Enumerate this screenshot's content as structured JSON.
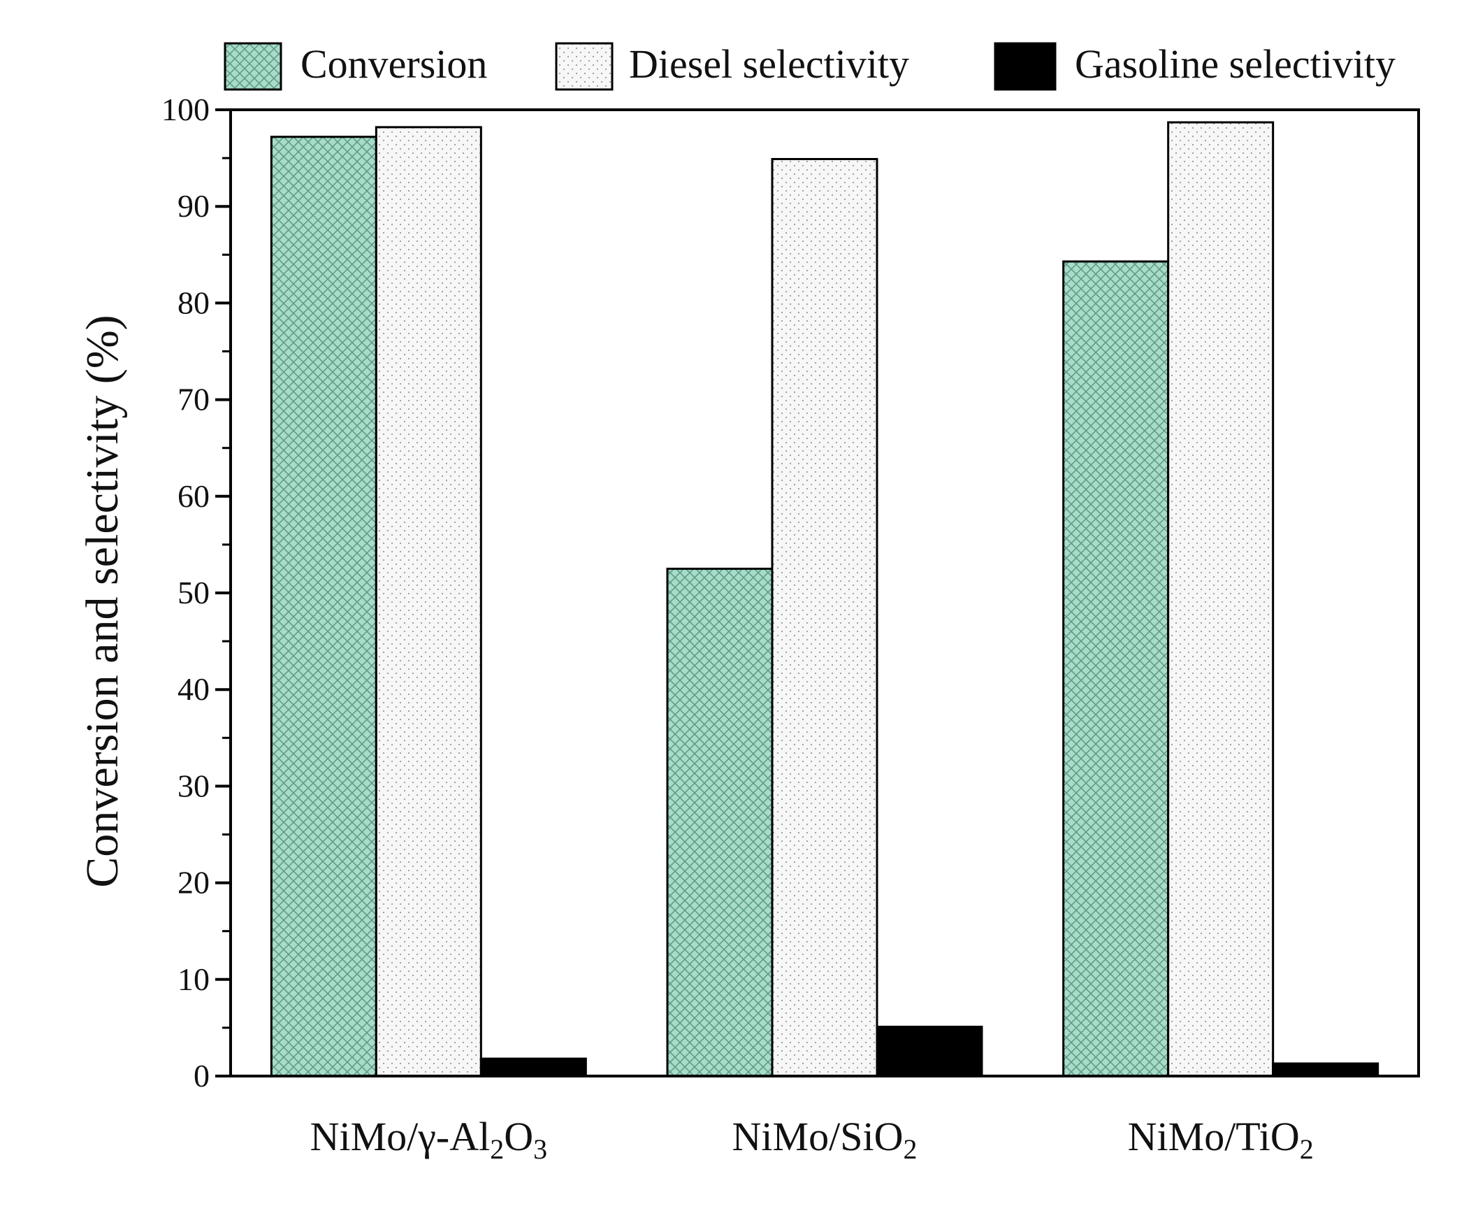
{
  "chart_data": {
    "type": "bar",
    "title": "",
    "xlabel": "",
    "ylabel": "Conversion and selectivity (%)",
    "ylim": [
      0,
      100
    ],
    "yticks": [
      0,
      10,
      20,
      30,
      40,
      50,
      60,
      70,
      80,
      90,
      100
    ],
    "categories": [
      {
        "base": "NiMo/γ-Al",
        "sub1": "2",
        "mid": "O",
        "sub2": "3"
      },
      {
        "base": "NiMo/SiO",
        "sub1": "2",
        "mid": "",
        "sub2": ""
      },
      {
        "base": "NiMo/TiO",
        "sub1": "2",
        "mid": "",
        "sub2": ""
      }
    ],
    "series": [
      {
        "name": "Conversion",
        "values": [
          97.2,
          52.5,
          84.3
        ],
        "color": "#9fd4c1",
        "pattern": "crosshatch"
      },
      {
        "name": "Diesel selectivity",
        "values": [
          98.2,
          94.9,
          98.7
        ],
        "color": "#f3f3f3",
        "pattern": "dots"
      },
      {
        "name": "Gasoline selectivity",
        "values": [
          1.8,
          5.1,
          1.3
        ],
        "color": "#000000",
        "pattern": "solid"
      }
    ],
    "legend_position": "top",
    "grid": false
  }
}
